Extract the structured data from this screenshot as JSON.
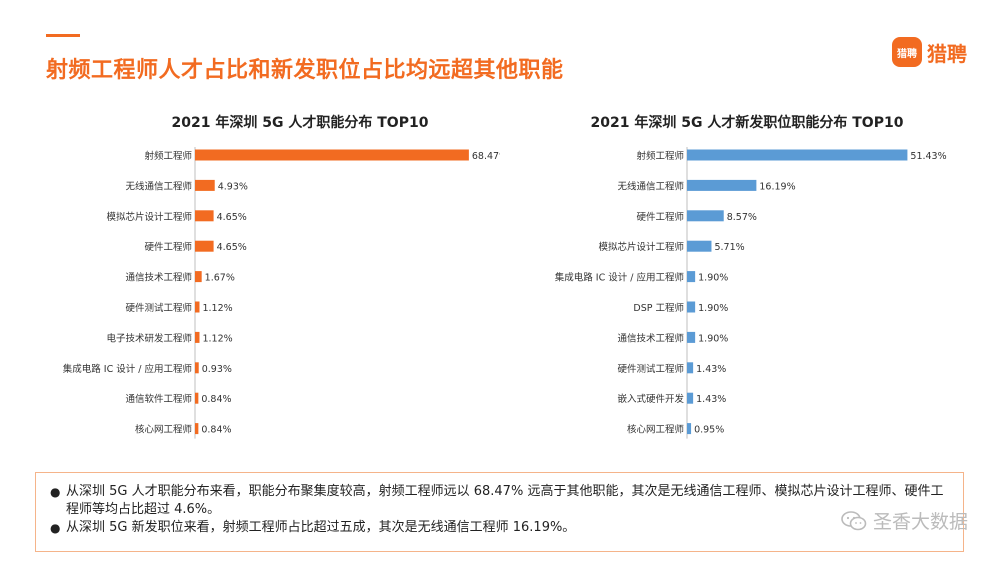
{
  "header": {
    "title": "射频工程师人才占比和新发职位占比均远超其他职能",
    "accent_color": "#f26b21",
    "logo": {
      "badge_text": "猎聘",
      "text": "猎聘",
      "icon": "liepin-logo-icon"
    }
  },
  "chart_data": [
    {
      "type": "bar",
      "orientation": "horizontal",
      "title": "2021 年深圳 5G 人才职能分布 TOP10",
      "categories": [
        "射频工程师",
        "无线通信工程师",
        "模拟芯片设计工程师",
        "硬件工程师",
        "通信技术工程师",
        "硬件测试工程师",
        "电子技术研发工程师",
        "集成电路 IC 设计 / 应用工程师",
        "通信软件工程师",
        "核心网工程师"
      ],
      "values": [
        68.47,
        4.93,
        4.65,
        4.65,
        1.67,
        1.12,
        1.12,
        0.93,
        0.84,
        0.84
      ],
      "labels": [
        "68.47%",
        "4.93%",
        "4.65%",
        "4.65%",
        "1.67%",
        "1.12%",
        "1.12%",
        "0.93%",
        "0.84%",
        "0.84%"
      ],
      "xlim": [
        0,
        100
      ],
      "color": "#f26b21",
      "grid": false
    },
    {
      "type": "bar",
      "orientation": "horizontal",
      "title": "2021 年深圳 5G 人才新发职位职能分布 TOP10",
      "categories": [
        "射频工程师",
        "无线通信工程师",
        "硬件工程师",
        "模拟芯片设计工程师",
        "集成电路 IC 设计 / 应用工程师",
        "DSP 工程师",
        "通信技术工程师",
        "硬件测试工程师",
        "嵌入式硬件开发",
        "核心网工程师"
      ],
      "values": [
        51.43,
        16.19,
        8.57,
        5.71,
        1.9,
        1.9,
        1.9,
        1.43,
        1.43,
        0.95
      ],
      "labels": [
        "51.43%",
        "16.19%",
        "8.57%",
        "5.71%",
        "1.90%",
        "1.90%",
        "1.90%",
        "1.43%",
        "1.43%",
        "0.95%"
      ],
      "xlim": [
        0,
        70
      ],
      "color": "#5b9bd5",
      "grid": false
    }
  ],
  "summary": {
    "items": [
      "从深圳 5G 人才职能分布来看，职能分布聚集度较高，射频工程师远以 68.47% 远高于其他职能，其次是无线通信工程师、模拟芯片设计工程师、硬件工程师等均占比超过 4.6%。",
      "从深圳 5G 新发职位来看，射频工程师占比超过五成，其次是无线通信工程师 16.19%。"
    ],
    "bullet": "●",
    "border_color": "#f5b48a"
  },
  "watermark": {
    "text": "圣香大数据",
    "icon": "wechat-icon"
  }
}
